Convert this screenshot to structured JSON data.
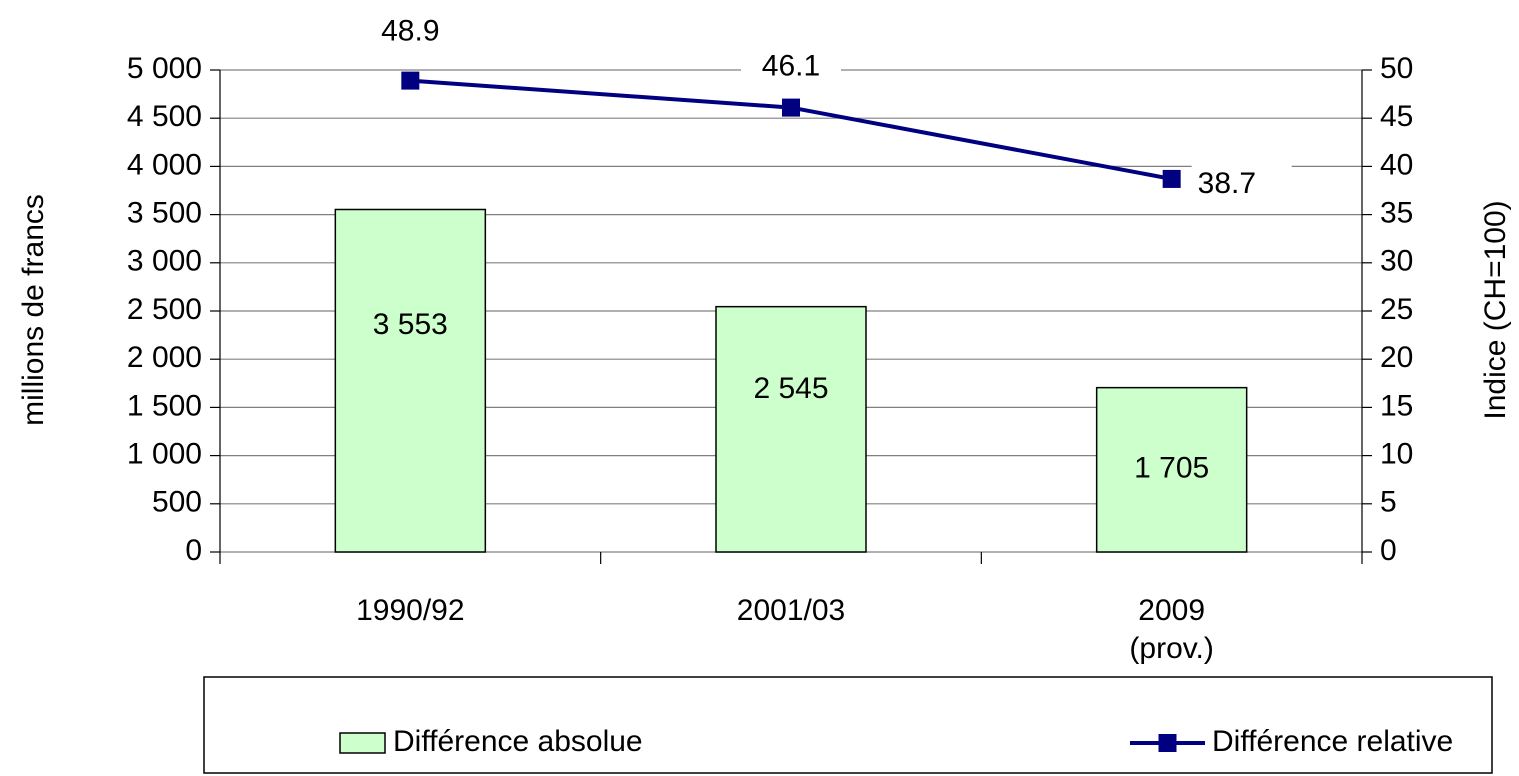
{
  "chart_data": {
    "type": "bar-line",
    "categories": [
      "1990/92",
      "2001/03",
      "2009\n(prov.)"
    ],
    "series": [
      {
        "name": "Différence absolue",
        "type": "bar",
        "color": "#ccffcc",
        "values": [
          3553,
          2545,
          1705
        ],
        "value_labels": [
          "3 553",
          "2 545",
          "1 705"
        ]
      },
      {
        "name": "Différence relative",
        "type": "line",
        "axis": "y2",
        "color": "#000080",
        "values": [
          48.9,
          46.1,
          38.7
        ]
      }
    ],
    "ylabel": "millions de francs",
    "y2label": "Indice (CH=100)",
    "ylim": [
      0,
      5000
    ],
    "yticks": [
      0,
      500,
      {
        "value": 1000,
        "label": "1 000"
      },
      {
        "value": 1500,
        "label": "1 500"
      },
      {
        "value": 2000,
        "label": "2 000"
      },
      {
        "value": 2500,
        "label": "2 500"
      },
      {
        "value": 3000,
        "label": "3 000"
      },
      {
        "value": 3500,
        "label": "3 500"
      },
      {
        "value": 4000,
        "label": "4 000"
      },
      {
        "value": 4500,
        "label": "4 500"
      },
      {
        "value": 5000,
        "label": "5 000"
      }
    ],
    "y2lim": [
      0,
      50
    ],
    "y2ticks": [
      0,
      5,
      10,
      15,
      20,
      25,
      30,
      35,
      40,
      45,
      50
    ],
    "grid": true,
    "legend": "bottom"
  }
}
